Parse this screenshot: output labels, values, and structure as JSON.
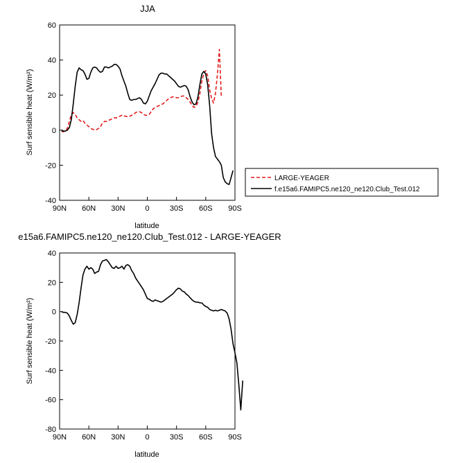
{
  "charts": [
    {
      "type": "line",
      "title": "JJA",
      "xlabel": "latitude",
      "ylabel": "Surf sensible heat (W/m²)",
      "xticks": [
        "90N",
        "60N",
        "30N",
        "0",
        "30S",
        "60S",
        "90S"
      ],
      "yticks": [
        "-40",
        "-20",
        "0",
        "20",
        "40",
        "60"
      ],
      "xlim": [
        90,
        -90
      ],
      "ylim": [
        -40,
        60
      ],
      "legend": [
        {
          "name": "LARGE-YEAGER",
          "color": "#e31a1c",
          "dash": true
        },
        {
          "name": "f.e15a6.FAMIPC5.ne120_ne120.Club_Test.012",
          "color": "#000000",
          "dash": false
        }
      ],
      "series": [
        {
          "name": "LARGE-YEAGER",
          "color": "#e31a1c",
          "dash": true,
          "points": [
            [
              88,
              -0.5
            ],
            [
              86,
              -1
            ],
            [
              84,
              0
            ],
            [
              82,
              1
            ],
            [
              80,
              5
            ],
            [
              78,
              9
            ],
            [
              76,
              10
            ],
            [
              74,
              9
            ],
            [
              72,
              7
            ],
            [
              70,
              6
            ],
            [
              68,
              5
            ],
            [
              66,
              5.5
            ],
            [
              64,
              4
            ],
            [
              62,
              3
            ],
            [
              60,
              2
            ],
            [
              58,
              1
            ],
            [
              56,
              0.5
            ],
            [
              54,
              0
            ],
            [
              52,
              0.3
            ],
            [
              50,
              1
            ],
            [
              48,
              2
            ],
            [
              46,
              4
            ],
            [
              44,
              5
            ],
            [
              42,
              5
            ],
            [
              40,
              5.5
            ],
            [
              38,
              6
            ],
            [
              36,
              6.5
            ],
            [
              34,
              7
            ],
            [
              32,
              7
            ],
            [
              30,
              7.5
            ],
            [
              28,
              8
            ],
            [
              26,
              8.5
            ],
            [
              24,
              8
            ],
            [
              22,
              8
            ],
            [
              20,
              7.5
            ],
            [
              18,
              8
            ],
            [
              16,
              8.5
            ],
            [
              14,
              9
            ],
            [
              12,
              10
            ],
            [
              10,
              10.5
            ],
            [
              8,
              10.5
            ],
            [
              6,
              10
            ],
            [
              4,
              9
            ],
            [
              2,
              8.5
            ],
            [
              0,
              8.5
            ],
            [
              -2,
              9
            ],
            [
              -4,
              10.5
            ],
            [
              -6,
              12
            ],
            [
              -8,
              13
            ],
            [
              -10,
              13.5
            ],
            [
              -12,
              14
            ],
            [
              -14,
              14.5
            ],
            [
              -16,
              15
            ],
            [
              -18,
              16
            ],
            [
              -20,
              17
            ],
            [
              -22,
              18
            ],
            [
              -24,
              18.5
            ],
            [
              -26,
              19
            ],
            [
              -28,
              19
            ],
            [
              -30,
              18.5
            ],
            [
              -32,
              18.5
            ],
            [
              -34,
              19
            ],
            [
              -36,
              19.5
            ],
            [
              -38,
              19.5
            ],
            [
              -40,
              18.5
            ],
            [
              -42,
              17.5
            ],
            [
              -44,
              16
            ],
            [
              -46,
              14
            ],
            [
              -48,
              13
            ],
            [
              -50,
              13.5
            ],
            [
              -52,
              16
            ],
            [
              -54,
              21
            ],
            [
              -56,
              28
            ],
            [
              -58,
              32
            ],
            [
              -60,
              34
            ],
            [
              -62,
              31
            ],
            [
              -64,
              23
            ],
            [
              -66,
              18
            ],
            [
              -68,
              15.5
            ],
            [
              -70,
              21
            ],
            [
              -72,
              32
            ],
            [
              -74,
              46
            ],
            [
              -76,
              19
            ]
          ]
        },
        {
          "name": "f.e15a6.FAMIPC5.ne120_ne120.Club_Test.012",
          "color": "#000000",
          "dash": false,
          "points": [
            [
              88,
              -0.5
            ],
            [
              86,
              -0.5
            ],
            [
              84,
              -0.5
            ],
            [
              82,
              0
            ],
            [
              80,
              1.5
            ],
            [
              78,
              6
            ],
            [
              76,
              15
            ],
            [
              74,
              25
            ],
            [
              72,
              33
            ],
            [
              70,
              35.5
            ],
            [
              68,
              34.5
            ],
            [
              66,
              34
            ],
            [
              64,
              32
            ],
            [
              62,
              29
            ],
            [
              60,
              29.5
            ],
            [
              58,
              33
            ],
            [
              56,
              35.5
            ],
            [
              54,
              36
            ],
            [
              52,
              35.5
            ],
            [
              50,
              34
            ],
            [
              48,
              33
            ],
            [
              46,
              33.5
            ],
            [
              44,
              36
            ],
            [
              42,
              36
            ],
            [
              40,
              35.5
            ],
            [
              38,
              36
            ],
            [
              36,
              36.5
            ],
            [
              34,
              37.5
            ],
            [
              32,
              37.5
            ],
            [
              30,
              36.5
            ],
            [
              28,
              35
            ],
            [
              26,
              31
            ],
            [
              24,
              28
            ],
            [
              22,
              25
            ],
            [
              20,
              21
            ],
            [
              18,
              17.5
            ],
            [
              16,
              17
            ],
            [
              14,
              17.5
            ],
            [
              12,
              17.5
            ],
            [
              10,
              18
            ],
            [
              8,
              18.5
            ],
            [
              6,
              17.5
            ],
            [
              4,
              15.5
            ],
            [
              2,
              15
            ],
            [
              0,
              16.5
            ],
            [
              -2,
              19.5
            ],
            [
              -4,
              22.5
            ],
            [
              -6,
              24.5
            ],
            [
              -8,
              26.5
            ],
            [
              -10,
              29
            ],
            [
              -12,
              31.5
            ],
            [
              -14,
              32.5
            ],
            [
              -16,
              32.5
            ],
            [
              -18,
              32
            ],
            [
              -20,
              32
            ],
            [
              -22,
              31
            ],
            [
              -24,
              30
            ],
            [
              -26,
              29
            ],
            [
              -28,
              28
            ],
            [
              -30,
              26.5
            ],
            [
              -32,
              25
            ],
            [
              -34,
              24.5
            ],
            [
              -36,
              25
            ],
            [
              -38,
              25.5
            ],
            [
              -40,
              25
            ],
            [
              -42,
              23
            ],
            [
              -44,
              19
            ],
            [
              -46,
              16
            ],
            [
              -48,
              14.5
            ],
            [
              -50,
              15
            ],
            [
              -52,
              19
            ],
            [
              -54,
              26
            ],
            [
              -56,
              32
            ],
            [
              -58,
              33.5
            ],
            [
              -60,
              32
            ],
            [
              -62,
              26
            ],
            [
              -64,
              14
            ],
            [
              -66,
              -2
            ],
            [
              -68,
              -10
            ],
            [
              -70,
              -15
            ],
            [
              -72,
              -16.5
            ],
            [
              -74,
              -18
            ],
            [
              -76,
              -20
            ],
            [
              -78,
              -27
            ],
            [
              -80,
              -29.5
            ],
            [
              -82,
              -30.5
            ],
            [
              -84,
              -31
            ],
            [
              -86,
              -27
            ],
            [
              -88,
              -23
            ]
          ]
        }
      ]
    },
    {
      "type": "line",
      "title": "e15a6.FAMIPC5.ne120_ne120.Club_Test.012 - LARGE-YEAGER",
      "xlabel": "latitude",
      "ylabel": "Surf sensible heat (W/m²)",
      "xticks": [
        "90N",
        "60N",
        "30N",
        "0",
        "30S",
        "60S",
        "90S"
      ],
      "yticks": [
        "-80",
        "-60",
        "-40",
        "-20",
        "0",
        "20",
        "40"
      ],
      "xlim": [
        90,
        -90
      ],
      "ylim": [
        -80,
        40
      ],
      "series": [
        {
          "name": "",
          "color": "#000000",
          "dash": false,
          "points": [
            [
              88,
              0
            ],
            [
              86,
              -0.5
            ],
            [
              84,
              -0.5
            ],
            [
              82,
              -1
            ],
            [
              80,
              -3
            ],
            [
              78,
              -6
            ],
            [
              76,
              -8.5
            ],
            [
              74,
              -7.5
            ],
            [
              72,
              -2
            ],
            [
              70,
              6
            ],
            [
              68,
              16
            ],
            [
              66,
              25
            ],
            [
              64,
              29
            ],
            [
              62,
              31
            ],
            [
              60,
              29
            ],
            [
              58,
              30
            ],
            [
              56,
              29
            ],
            [
              54,
              26
            ],
            [
              52,
              27
            ],
            [
              50,
              27.5
            ],
            [
              48,
              32
            ],
            [
              46,
              34.5
            ],
            [
              44,
              35
            ],
            [
              42,
              35.5
            ],
            [
              40,
              34
            ],
            [
              38,
              32
            ],
            [
              36,
              30
            ],
            [
              34,
              29.5
            ],
            [
              32,
              31
            ],
            [
              30,
              29.5
            ],
            [
              28,
              30
            ],
            [
              26,
              31
            ],
            [
              24,
              29
            ],
            [
              22,
              31.5
            ],
            [
              20,
              32
            ],
            [
              18,
              31
            ],
            [
              16,
              28
            ],
            [
              14,
              26
            ],
            [
              12,
              23
            ],
            [
              10,
              21
            ],
            [
              8,
              19
            ],
            [
              6,
              17
            ],
            [
              4,
              15
            ],
            [
              2,
              12
            ],
            [
              0,
              9
            ],
            [
              -2,
              8.5
            ],
            [
              -4,
              7.5
            ],
            [
              -6,
              7
            ],
            [
              -8,
              8
            ],
            [
              -10,
              7.5
            ],
            [
              -12,
              7
            ],
            [
              -14,
              6.5
            ],
            [
              -16,
              7
            ],
            [
              -18,
              8
            ],
            [
              -20,
              9
            ],
            [
              -22,
              10
            ],
            [
              -24,
              11
            ],
            [
              -26,
              12
            ],
            [
              -28,
              13.5
            ],
            [
              -30,
              15
            ],
            [
              -32,
              16
            ],
            [
              -34,
              15.5
            ],
            [
              -36,
              14
            ],
            [
              -38,
              13.5
            ],
            [
              -40,
              12
            ],
            [
              -42,
              11
            ],
            [
              -44,
              9.5
            ],
            [
              -46,
              8
            ],
            [
              -48,
              7
            ],
            [
              -50,
              6.5
            ],
            [
              -52,
              6.5
            ],
            [
              -54,
              6
            ],
            [
              -56,
              6
            ],
            [
              -58,
              4.5
            ],
            [
              -60,
              3.5
            ],
            [
              -62,
              3
            ],
            [
              -64,
              1.5
            ],
            [
              -66,
              1
            ],
            [
              -68,
              0.5
            ],
            [
              -70,
              1
            ],
            [
              -72,
              0.5
            ],
            [
              -74,
              1
            ],
            [
              -76,
              1.5
            ],
            [
              -78,
              1
            ],
            [
              -80,
              0.5
            ],
            [
              -82,
              -1
            ],
            [
              -84,
              -5
            ],
            [
              -86,
              -12
            ],
            [
              -88,
              -22
            ],
            [
              -90,
              -28
            ],
            [
              -92,
              -35
            ],
            [
              -94,
              -50
            ],
            [
              -96,
              -67
            ],
            [
              -98,
              -47
            ]
          ]
        }
      ]
    }
  ]
}
